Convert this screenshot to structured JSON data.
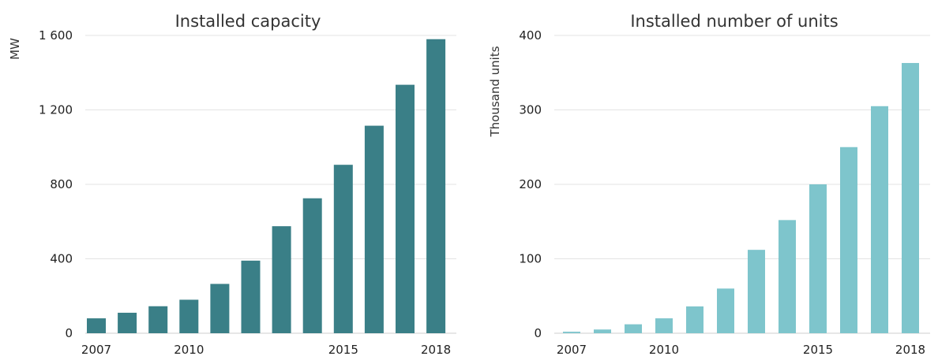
{
  "chart_data": [
    {
      "type": "bar",
      "title": "Installed capacity",
      "ylabel": "MW",
      "xlabel": "",
      "color": "#3a7f87",
      "categories": [
        2007,
        2008,
        2009,
        2010,
        2011,
        2012,
        2013,
        2014,
        2015,
        2016,
        2017,
        2018
      ],
      "values": [
        80,
        110,
        145,
        180,
        265,
        390,
        575,
        725,
        905,
        1115,
        1335,
        1580
      ],
      "ylim": [
        0,
        1600
      ],
      "yticks": [
        0,
        400,
        800,
        1200,
        1600
      ],
      "ytick_labels": [
        "0",
        "400",
        "800",
        "1 200",
        "1 600"
      ],
      "xtick_labels": [
        "2007",
        "2010",
        "2015",
        "2018"
      ],
      "grid": true
    },
    {
      "type": "bar",
      "title": "Installed number of units",
      "ylabel": "Thousand units",
      "xlabel": "",
      "color": "#7ec5cc",
      "categories": [
        2007,
        2008,
        2009,
        2010,
        2011,
        2012,
        2013,
        2014,
        2015,
        2016,
        2017,
        2018
      ],
      "values": [
        2,
        5,
        12,
        20,
        36,
        60,
        112,
        152,
        200,
        250,
        305,
        363
      ],
      "ylim": [
        0,
        400
      ],
      "yticks": [
        0,
        100,
        200,
        300,
        400
      ],
      "ytick_labels": [
        "0",
        "100",
        "200",
        "300",
        "400"
      ],
      "xtick_labels": [
        "2007",
        "2010",
        "2015",
        "2018"
      ],
      "grid": true
    }
  ]
}
